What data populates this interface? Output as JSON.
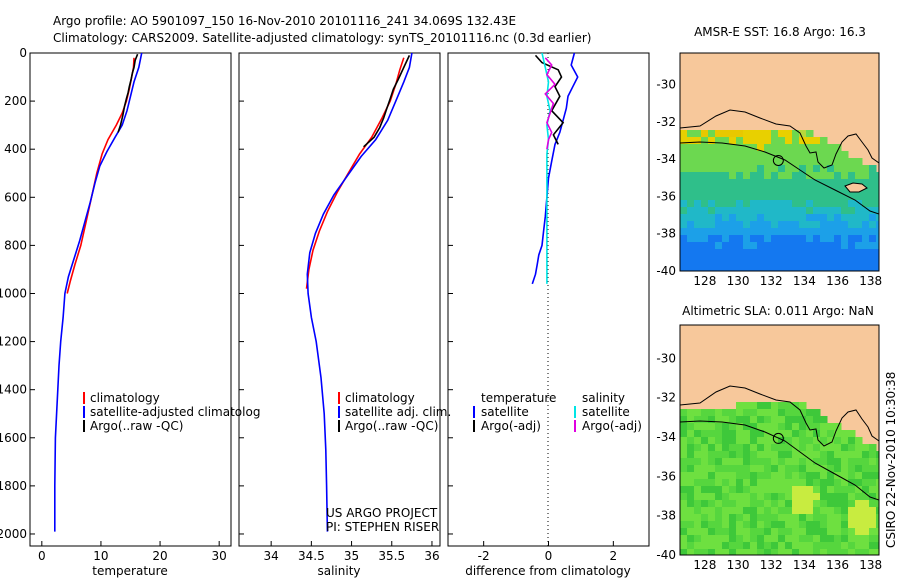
{
  "figure": {
    "title_line1": "Argo profile: AO 5901097_150 16-Nov-2010 20101116_241 34.069S 132.43E",
    "title_line2": "Climatology: CARS2009. Satellite-adjusted climatology: synTS_20101116.nc (0.3d earlier)",
    "credit": "CSIRO 22-Nov-2010 10:30:38",
    "project_line1": "US ARGO PROJECT",
    "project_line2": "PI: STEPHEN RISER",
    "colors": {
      "climatology": "#ff0000",
      "satellite": "#0000ff",
      "argo": "#000000",
      "salinity_satellite": "#00e5e5",
      "salinity_argo": "#e000e0",
      "land": "#f7c89b"
    }
  },
  "chart_data": [
    {
      "type": "line",
      "name": "temperature-profile",
      "xlabel": "temperature",
      "xlim": [
        -2,
        32
      ],
      "ylim": [
        0,
        2050
      ],
      "y_inverted": true,
      "xticks": [
        "0",
        "10",
        "20",
        "30"
      ],
      "yticks": [
        "0",
        "200",
        "400",
        "600",
        "800",
        "1000",
        "1200",
        "1400",
        "1600",
        "1800",
        "2000"
      ],
      "legend": [
        "climatology",
        "satellite-adjusted climatolog",
        "Argo(..raw -QC)"
      ],
      "series": [
        {
          "name": "climatology",
          "color": "#ff0000",
          "x": [
            15.6,
            15.5,
            15.2,
            14.8,
            14.3,
            13.6,
            12.6,
            11.2,
            10.2,
            9.3,
            8.4,
            7.5,
            6.6,
            5.6,
            4.8,
            4.3
          ],
          "y": [
            20,
            60,
            100,
            150,
            200,
            250,
            300,
            360,
            420,
            500,
            600,
            700,
            800,
            880,
            950,
            1000
          ]
        },
        {
          "name": "satellite-adjusted climatolog",
          "color": "#0000ff",
          "x": [
            16.9,
            16.4,
            15.6,
            15.0,
            14.4,
            13.6,
            12.4,
            11.0,
            9.8,
            9.0,
            8.2,
            7.3,
            6.4,
            5.4,
            4.5,
            3.9,
            3.6,
            3.2,
            2.9,
            2.7,
            2.5,
            2.3,
            2.2,
            2.2
          ],
          "y": [
            0,
            60,
            120,
            180,
            240,
            300,
            350,
            410,
            470,
            540,
            620,
            700,
            780,
            860,
            930,
            1000,
            1100,
            1200,
            1300,
            1400,
            1500,
            1600,
            1800,
            1990
          ]
        },
        {
          "name": "Argo(..raw -QC)",
          "color": "#000000",
          "x": [
            16.2,
            15.8,
            15.6,
            15.3,
            15.1,
            14.8,
            14.6,
            14.3,
            14.0,
            13.7,
            13.3,
            12.9
          ],
          "y": [
            5,
            30,
            60,
            85,
            110,
            140,
            165,
            190,
            220,
            260,
            300,
            330
          ]
        }
      ]
    },
    {
      "type": "line",
      "name": "salinity-profile",
      "xlabel": "salinity",
      "xlim": [
        33.6,
        36.1
      ],
      "ylim": [
        0,
        2050
      ],
      "y_inverted": true,
      "xticks": [
        "34",
        "34.5",
        "35",
        "35.5",
        "36"
      ],
      "legend": [
        "climatology",
        "satellite adj. clim.",
        "Argo(..raw -QC)"
      ],
      "series": [
        {
          "name": "climatology",
          "color": "#ff0000",
          "x": [
            35.65,
            35.6,
            35.55,
            35.48,
            35.38,
            35.25,
            35.1,
            34.96,
            34.82,
            34.7,
            34.6,
            34.52,
            34.47,
            34.44
          ],
          "y": [
            20,
            70,
            130,
            200,
            270,
            350,
            420,
            500,
            580,
            660,
            740,
            820,
            900,
            980
          ]
        },
        {
          "name": "satellite adj. clim.",
          "color": "#0000ff",
          "x": [
            35.75,
            35.72,
            35.65,
            35.55,
            35.45,
            35.3,
            35.12,
            34.95,
            34.78,
            34.65,
            34.55,
            34.48,
            34.45,
            34.46,
            34.5,
            34.56,
            34.62,
            34.66,
            34.68,
            34.69,
            34.7
          ],
          "y": [
            0,
            60,
            120,
            200,
            280,
            360,
            430,
            510,
            590,
            670,
            750,
            830,
            920,
            1000,
            1100,
            1200,
            1350,
            1500,
            1650,
            1800,
            1990
          ]
        },
        {
          "name": "Argo(..raw -QC)",
          "color": "#000000",
          "x": [
            35.72,
            35.65,
            35.58,
            35.52,
            35.48,
            35.44,
            35.4,
            35.35,
            35.28,
            35.15
          ],
          "y": [
            10,
            60,
            110,
            150,
            190,
            230,
            270,
            310,
            350,
            390
          ]
        }
      ]
    },
    {
      "type": "line",
      "name": "difference-profile",
      "xlabel": "difference from climatology",
      "xlim": [
        -3.1,
        3.1
      ],
      "ylim": [
        0,
        2050
      ],
      "y_inverted": true,
      "xticks": [
        "-2",
        "0",
        "2"
      ],
      "legend": [
        "temperature",
        "satellite",
        "Argo(-adj)",
        "salinity",
        "satellite",
        "Argo(-adj)"
      ],
      "series": [
        {
          "name": "temperature satellite",
          "color": "#0000ff",
          "x": [
            0.8,
            0.7,
            0.9,
            0.75,
            0.6,
            0.55,
            0.45,
            0.35,
            0.2,
            0.1,
            0.0,
            -0.05,
            -0.1,
            -0.15,
            -0.2,
            -0.3,
            -0.35,
            -0.4,
            -0.5
          ],
          "y": [
            0,
            50,
            100,
            140,
            180,
            230,
            280,
            330,
            380,
            450,
            520,
            600,
            680,
            740,
            800,
            840,
            880,
            920,
            960
          ]
        },
        {
          "name": "temperature Argo(-adj)",
          "color": "#000000",
          "x": [
            -0.4,
            -0.2,
            0.3,
            0.4,
            0.2,
            0.35,
            0.1,
            0.45,
            0.15,
            0.3
          ],
          "y": [
            10,
            40,
            70,
            100,
            140,
            180,
            240,
            290,
            340,
            380
          ]
        },
        {
          "name": "salinity satellite",
          "color": "#00e5e5",
          "x": [
            -0.2,
            -0.1,
            0.0,
            -0.05,
            0.05,
            -0.05,
            0.0,
            -0.05,
            -0.05,
            -0.05,
            -0.05,
            -0.05,
            -0.05,
            -0.05,
            -0.05,
            -0.05,
            -0.05
          ],
          "y": [
            0,
            60,
            120,
            180,
            240,
            300,
            360,
            420,
            480,
            540,
            600,
            680,
            760,
            840,
            900,
            940,
            960
          ]
        },
        {
          "name": "salinity Argo(-adj)",
          "color": "#e000e0",
          "x": [
            -0.1,
            0.1,
            -0.05,
            0.2,
            -0.1,
            0.15,
            0.05,
            -0.05,
            0.1,
            0.0,
            -0.05
          ],
          "y": [
            20,
            50,
            90,
            130,
            170,
            210,
            250,
            290,
            330,
            360,
            400
          ]
        }
      ]
    },
    {
      "type": "heatmap",
      "name": "sst-map",
      "title": "AMSR-E SST: 16.8 Argo: 16.3",
      "xlim": [
        126.5,
        138.5
      ],
      "ylim": [
        -40,
        -28.3
      ],
      "xticks": [
        "128",
        "130",
        "132",
        "134",
        "136",
        "138"
      ],
      "yticks": [
        "-30",
        "-32",
        "-34",
        "-36",
        "-38",
        "-40"
      ],
      "marker": {
        "lon": 132.43,
        "lat": -34.069
      }
    },
    {
      "type": "heatmap",
      "name": "sla-map",
      "title": "Altimetric SLA: 0.011 Argo: NaN",
      "xlim": [
        126.5,
        138.5
      ],
      "ylim": [
        -40,
        -28.3
      ],
      "xticks": [
        "128",
        "130",
        "132",
        "134",
        "136",
        "138"
      ],
      "yticks": [
        "-30",
        "-32",
        "-34",
        "-36",
        "-38",
        "-40"
      ],
      "marker": {
        "lon": 132.43,
        "lat": -34.069
      }
    }
  ]
}
